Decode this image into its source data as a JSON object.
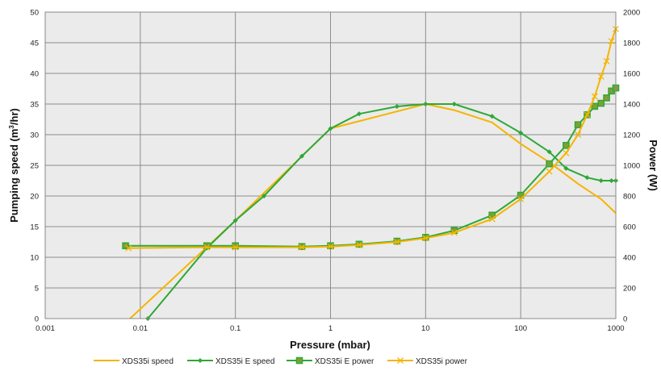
{
  "chart_data": {
    "type": "line",
    "xlabel": "Pressure (mbar)",
    "x_scale": "log",
    "xlim": [
      0.001,
      1000
    ],
    "x_ticks": [
      "0.001",
      "0.01",
      "0.1",
      "1",
      "10",
      "100",
      "1000"
    ],
    "ylabel_left_prefix": "Pumping speed (m",
    "ylabel_left_sup": "3",
    "ylabel_left_suffix": "/hr)",
    "ylim_left": [
      0,
      50
    ],
    "y_ticks_left": [
      "0",
      "5",
      "10",
      "15",
      "20",
      "25",
      "30",
      "35",
      "40",
      "45",
      "50"
    ],
    "ylabel_right": "Power (W)",
    "ylim_right": [
      0,
      2000
    ],
    "y_ticks_right": [
      "0",
      "200",
      "400",
      "600",
      "800",
      "1000",
      "1200",
      "1400",
      "1600",
      "1800",
      "2000"
    ],
    "grid": true,
    "legend_position": "bottom",
    "series": [
      {
        "name": "XDS35i speed",
        "axis": "left",
        "color": "#f5b400",
        "marker": "none",
        "x": [
          0.0078,
          0.1,
          1,
          10,
          20,
          50,
          100,
          200,
          400,
          700,
          1000
        ],
        "y": [
          0,
          16,
          31,
          35,
          34,
          32,
          28.5,
          25.5,
          22,
          19.5,
          17.2
        ]
      },
      {
        "name": "XDS35i E speed",
        "axis": "left",
        "color": "#2ea836",
        "marker": "diamond",
        "x": [
          0.012,
          0.05,
          0.1,
          0.2,
          0.5,
          1,
          2,
          5,
          10,
          20,
          50,
          100,
          200,
          300,
          500,
          700,
          900,
          1000
        ],
        "y": [
          0,
          11.5,
          16,
          20,
          26.5,
          31,
          33.4,
          34.6,
          35,
          35,
          33,
          30.3,
          27.2,
          24.5,
          23,
          22.5,
          22.5,
          22.5
        ]
      },
      {
        "name": "XDS35i E power",
        "axis": "right",
        "color": "#2ea836",
        "marker": "square",
        "x": [
          0.007,
          0.05,
          0.1,
          0.5,
          1,
          2,
          5,
          10,
          20,
          50,
          100,
          200,
          300,
          400,
          500,
          600,
          700,
          800,
          900,
          1000
        ],
        "y": [
          475,
          475,
          475,
          470,
          475,
          485,
          505,
          530,
          575,
          675,
          805,
          1010,
          1130,
          1265,
          1330,
          1385,
          1405,
          1440,
          1485,
          1505
        ]
      },
      {
        "name": "XDS35i power",
        "axis": "right",
        "color": "#f5b400",
        "marker": "x",
        "x": [
          0.0075,
          0.05,
          0.1,
          0.5,
          1,
          2,
          5,
          10,
          20,
          50,
          100,
          200,
          300,
          400,
          500,
          600,
          700,
          800,
          900,
          1000
        ],
        "y": [
          460,
          465,
          465,
          465,
          470,
          480,
          500,
          525,
          560,
          650,
          780,
          960,
          1080,
          1200,
          1330,
          1450,
          1580,
          1680,
          1810,
          1890
        ]
      }
    ]
  }
}
